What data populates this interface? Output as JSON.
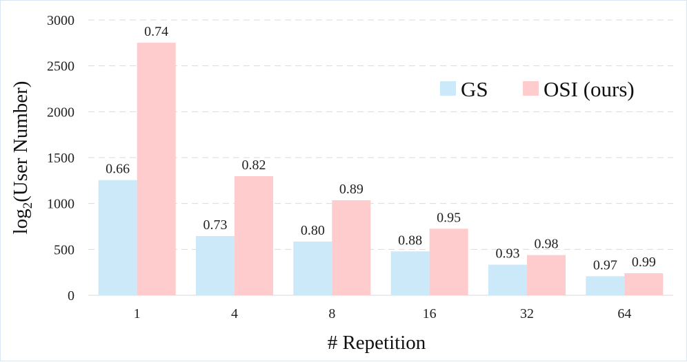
{
  "chart_data": {
    "type": "bar",
    "categories": [
      "1",
      "4",
      "8",
      "16",
      "32",
      "64"
    ],
    "series": [
      {
        "name": "GS",
        "values": [
          1255,
          645,
          585,
          478,
          333,
          207
        ],
        "labels": [
          "0.66",
          "0.73",
          "0.80",
          "0.88",
          "0.93",
          "0.97"
        ],
        "color": "#cce9f9"
      },
      {
        "name": "OSI (ours)",
        "values": [
          2752,
          1298,
          1035,
          725,
          438,
          240
        ],
        "labels": [
          "0.74",
          "0.82",
          "0.89",
          "0.95",
          "0.98",
          "0.99"
        ],
        "color": "#ffccce"
      }
    ],
    "title": "",
    "xlabel": "# Repetition",
    "ylabel_main": "log",
    "ylabel_sub": "2",
    "ylabel_rest": "(User Number)",
    "ylim": [
      0,
      3000
    ],
    "yticks": [
      0,
      500,
      1000,
      1500,
      2000,
      2500,
      3000
    ],
    "grid": true,
    "legend_position": "top-right"
  }
}
